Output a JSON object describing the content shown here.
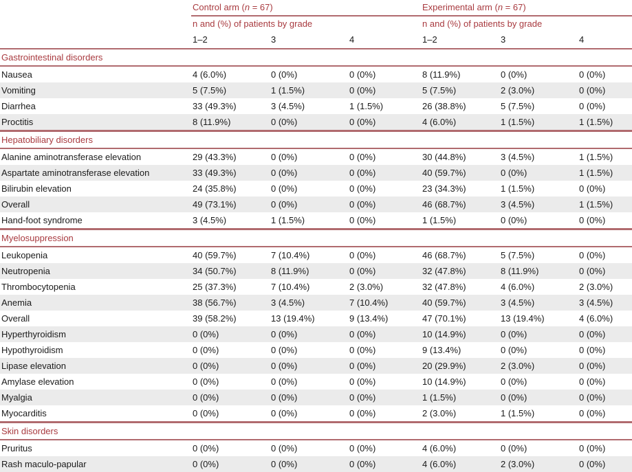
{
  "header": {
    "control_arm_prefix": "Control arm (",
    "control_arm_n": "n",
    "control_arm_suffix": " = 67)",
    "experimental_arm_prefix": "Experimental arm (",
    "experimental_arm_n": "n",
    "experimental_arm_suffix": " = 67)",
    "subheader": "n and (%) of patients by grade",
    "grades": [
      "1–2",
      "3",
      "4",
      "1–2",
      "3",
      "4"
    ]
  },
  "sections": [
    {
      "title": "Gastrointestinal disorders",
      "rows": [
        {
          "label": "Nausea",
          "values": [
            "4 (6.0%)",
            "0 (0%)",
            "0 (0%)",
            "8 (11.9%)",
            "0 (0%)",
            "0 (0%)"
          ]
        },
        {
          "label": "Vomiting",
          "values": [
            "5 (7.5%)",
            "1 (1.5%)",
            "0 (0%)",
            "5 (7.5%)",
            "2 (3.0%)",
            "0 (0%)"
          ]
        },
        {
          "label": "Diarrhea",
          "values": [
            "33 (49.3%)",
            "3 (4.5%)",
            "1 (1.5%)",
            "26 (38.8%)",
            "5 (7.5%)",
            "0 (0%)"
          ]
        },
        {
          "label": "Proctitis",
          "values": [
            "8 (11.9%)",
            "0 (0%)",
            "0 (0%)",
            "4 (6.0%)",
            "1 (1.5%)",
            "1 (1.5%)"
          ]
        }
      ]
    },
    {
      "title": "Hepatobiliary disorders",
      "rows": [
        {
          "label": "Alanine aminotransferase elevation",
          "values": [
            "29 (43.3%)",
            "0 (0%)",
            "0 (0%)",
            "30 (44.8%)",
            "3 (4.5%)",
            "1 (1.5%)"
          ]
        },
        {
          "label": "Aspartate aminotransferase elevation",
          "values": [
            "33 (49.3%)",
            "0 (0%)",
            "0 (0%)",
            "40 (59.7%)",
            "0 (0%)",
            "1 (1.5%)"
          ]
        },
        {
          "label": "Bilirubin elevation",
          "values": [
            "24 (35.8%)",
            "0 (0%)",
            "0 (0%)",
            "23 (34.3%)",
            "1 (1.5%)",
            "0 (0%)"
          ]
        },
        {
          "label": "Overall",
          "values": [
            "49 (73.1%)",
            "0 (0%)",
            "0 (0%)",
            "46 (68.7%)",
            "3 (4.5%)",
            "1 (1.5%)"
          ]
        },
        {
          "label": "Hand-foot syndrome",
          "values": [
            "3 (4.5%)",
            "1 (1.5%)",
            "0 (0%)",
            "1 (1.5%)",
            "0 (0%)",
            "0 (0%)"
          ]
        }
      ]
    },
    {
      "title": "Myelosuppression",
      "rows": [
        {
          "label": "Leukopenia",
          "values": [
            "40 (59.7%)",
            "7 (10.4%)",
            "0 (0%)",
            "46 (68.7%)",
            "5 (7.5%)",
            "0 (0%)"
          ]
        },
        {
          "label": "Neutropenia",
          "values": [
            "34 (50.7%)",
            "8 (11.9%)",
            "0 (0%)",
            "32 (47.8%)",
            "8 (11.9%)",
            "0 (0%)"
          ]
        },
        {
          "label": "Thrombocytopenia",
          "values": [
            "25 (37.3%)",
            "7 (10.4%)",
            "2 (3.0%)",
            "32 (47.8%)",
            "4 (6.0%)",
            "2 (3.0%)"
          ]
        },
        {
          "label": "Anemia",
          "values": [
            "38 (56.7%)",
            "3 (4.5%)",
            "7 (10.4%)",
            "40 (59.7%)",
            "3 (4.5%)",
            "3 (4.5%)"
          ]
        },
        {
          "label": "Overall",
          "values": [
            "39 (58.2%)",
            "13 (19.4%)",
            "9 (13.4%)",
            "47 (70.1%)",
            "13 (19.4%)",
            "4 (6.0%)"
          ]
        },
        {
          "label": "Hyperthyroidism",
          "values": [
            "0 (0%)",
            "0 (0%)",
            "0 (0%)",
            "10 (14.9%)",
            "0 (0%)",
            "0 (0%)"
          ]
        },
        {
          "label": "Hypothyroidism",
          "values": [
            "0 (0%)",
            "0 (0%)",
            "0 (0%)",
            "9 (13.4%)",
            "0 (0%)",
            "0 (0%)"
          ]
        },
        {
          "label": "Lipase elevation",
          "values": [
            "0 (0%)",
            "0 (0%)",
            "0 (0%)",
            "20 (29.9%)",
            "2 (3.0%)",
            "0 (0%)"
          ]
        },
        {
          "label": "Amylase elevation",
          "values": [
            "0 (0%)",
            "0 (0%)",
            "0 (0%)",
            "10 (14.9%)",
            "0 (0%)",
            "0 (0%)"
          ]
        },
        {
          "label": "Myalgia",
          "values": [
            "0 (0%)",
            "0 (0%)",
            "0 (0%)",
            "1 (1.5%)",
            "0 (0%)",
            "0 (0%)"
          ]
        },
        {
          "label": "Myocarditis",
          "values": [
            "0 (0%)",
            "0 (0%)",
            "0 (0%)",
            "2 (3.0%)",
            "1 (1.5%)",
            "0 (0%)"
          ]
        }
      ]
    },
    {
      "title": "Skin disorders",
      "rows": [
        {
          "label": "Pruritus",
          "values": [
            "0 (0%)",
            "0 (0%)",
            "0 (0%)",
            "4 (6.0%)",
            "0 (0%)",
            "0 (0%)"
          ]
        },
        {
          "label": "Rash maculo-papular",
          "values": [
            "0 (0%)",
            "0 (0%)",
            "0 (0%)",
            "4 (6.0%)",
            "2 (3.0%)",
            "0 (0%)"
          ]
        }
      ]
    }
  ]
}
